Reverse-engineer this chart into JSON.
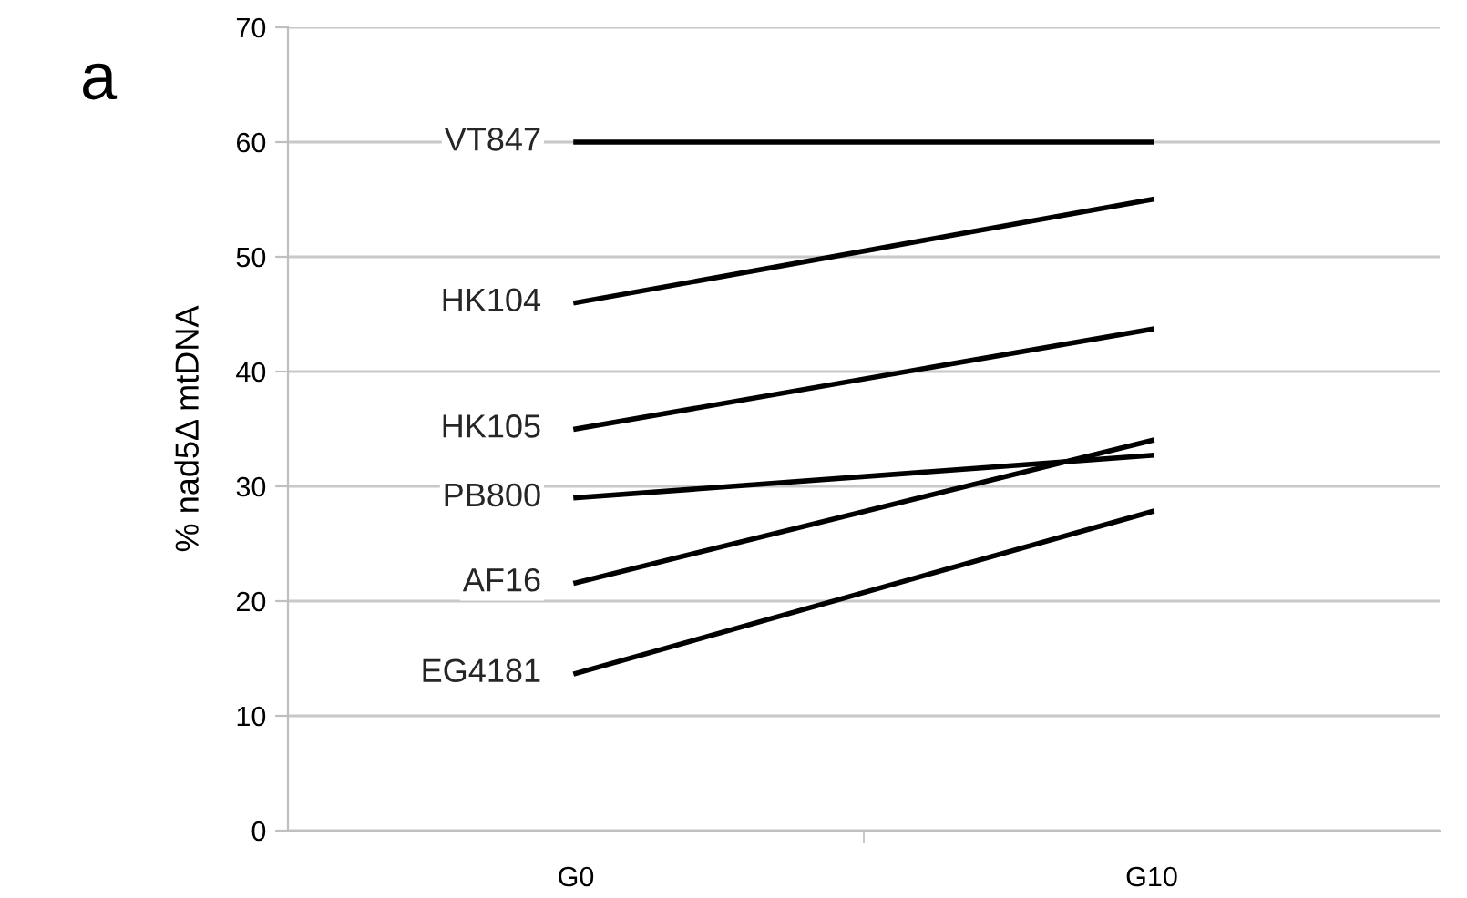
{
  "chart_data": {
    "type": "line",
    "ylabel": "% nad5Δ mtDNA",
    "annotations": [
      "a"
    ],
    "categories": [
      "G0",
      "G10"
    ],
    "series": [
      {
        "name": "VT847",
        "color": "#000000",
        "values": [
          60,
          60
        ]
      },
      {
        "name": "HK104",
        "color": "#000000",
        "values": [
          46,
          55
        ]
      },
      {
        "name": "HK105",
        "color": "#000000",
        "values": [
          35,
          43.7
        ]
      },
      {
        "name": "PB800",
        "color": "#000000",
        "values": [
          29,
          32.7
        ]
      },
      {
        "name": "AF16",
        "color": "#000000",
        "values": [
          21.6,
          34
        ]
      },
      {
        "name": "EG4181",
        "color": "#000000",
        "values": [
          13.7,
          27.8
        ]
      }
    ],
    "ylim": [
      0,
      70
    ],
    "yticks": [
      0,
      10,
      20,
      30,
      40,
      50,
      60,
      70
    ],
    "grid": "y",
    "legend": false,
    "line_style": "solid"
  }
}
